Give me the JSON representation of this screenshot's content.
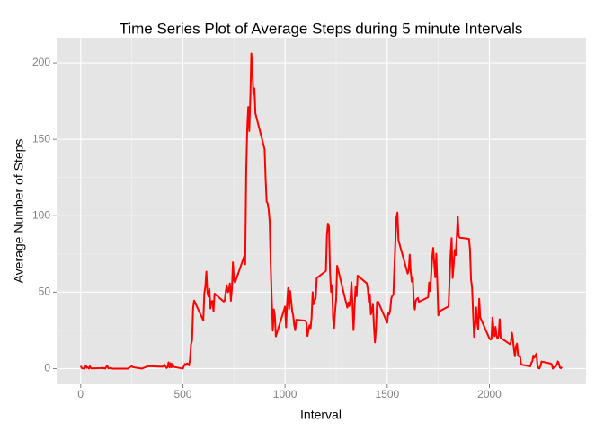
{
  "chart_data": {
    "type": "line",
    "title": "Time Series Plot of Average Steps during 5 minute Intervals",
    "x_label": "Interval",
    "y_label": "Average Number of Steps",
    "xlim": [
      -117.75,
      2472.75
    ],
    "ylim": [
      -10.31,
      216.48
    ],
    "xticks": [
      0,
      500,
      1000,
      1500,
      2000
    ],
    "yticks": [
      0,
      50,
      100,
      150,
      200
    ],
    "grid": true,
    "series": [
      {
        "color": "#ff0000",
        "x": [
          0,
          5,
          10,
          15,
          20,
          25,
          30,
          35,
          40,
          45,
          50,
          55,
          100,
          105,
          110,
          115,
          120,
          125,
          130,
          135,
          140,
          145,
          150,
          155,
          200,
          230,
          250,
          255,
          300,
          330,
          400,
          410,
          420,
          425,
          430,
          435,
          440,
          445,
          450,
          455,
          500,
          505,
          510,
          515,
          520,
          525,
          530,
          535,
          540,
          545,
          550,
          555,
          600,
          605,
          610,
          615,
          620,
          625,
          630,
          635,
          640,
          645,
          650,
          655,
          700,
          705,
          710,
          715,
          720,
          725,
          730,
          735,
          740,
          745,
          750,
          755,
          800,
          805,
          810,
          815,
          820,
          825,
          830,
          835,
          840,
          845,
          850,
          855,
          900,
          905,
          910,
          915,
          920,
          925,
          930,
          935,
          940,
          945,
          950,
          955,
          1000,
          1005,
          1010,
          1015,
          1020,
          1025,
          1030,
          1035,
          1040,
          1045,
          1050,
          1055,
          1100,
          1105,
          1110,
          1115,
          1120,
          1125,
          1130,
          1135,
          1140,
          1145,
          1150,
          1155,
          1200,
          1205,
          1210,
          1215,
          1220,
          1225,
          1230,
          1235,
          1240,
          1245,
          1250,
          1255,
          1300,
          1305,
          1310,
          1315,
          1320,
          1325,
          1330,
          1335,
          1340,
          1345,
          1350,
          1355,
          1400,
          1405,
          1410,
          1415,
          1420,
          1425,
          1430,
          1435,
          1440,
          1445,
          1450,
          1455,
          1500,
          1505,
          1510,
          1515,
          1520,
          1525,
          1530,
          1535,
          1540,
          1545,
          1550,
          1555,
          1600,
          1605,
          1610,
          1615,
          1620,
          1625,
          1630,
          1635,
          1640,
          1645,
          1650,
          1655,
          1700,
          1705,
          1710,
          1715,
          1720,
          1725,
          1730,
          1735,
          1740,
          1745,
          1750,
          1755,
          1800,
          1805,
          1810,
          1815,
          1820,
          1825,
          1830,
          1835,
          1840,
          1845,
          1850,
          1855,
          1900,
          1905,
          1910,
          1915,
          1920,
          1925,
          1930,
          1935,
          1940,
          1945,
          1950,
          1955,
          2000,
          2005,
          2010,
          2015,
          2020,
          2025,
          2030,
          2035,
          2040,
          2045,
          2050,
          2055,
          2100,
          2105,
          2110,
          2115,
          2120,
          2125,
          2130,
          2135,
          2140,
          2145,
          2150,
          2155,
          2200,
          2205,
          2210,
          2215,
          2220,
          2225,
          2230,
          2235,
          2240,
          2245,
          2250,
          2255,
          2300,
          2305,
          2310,
          2315,
          2320,
          2325,
          2330,
          2335,
          2340,
          2345,
          2350,
          2355
        ],
        "values": [
          1.72,
          0.34,
          0.13,
          0.15,
          0.08,
          2.09,
          0.53,
          0.87,
          0,
          1.47,
          0.3,
          0.13,
          0.32,
          0.68,
          0.15,
          0.34,
          0,
          1.11,
          1.83,
          0.17,
          0.17,
          0.38,
          0.26,
          0,
          0,
          0,
          1.55,
          0.94,
          0,
          1.62,
          1.19,
          2.57,
          0.34,
          0.94,
          4.11,
          0.66,
          3.49,
          0.83,
          3.11,
          1.11,
          0,
          1.57,
          3,
          2.25,
          3.32,
          2.96,
          2.09,
          6.06,
          16.02,
          18.34,
          39.45,
          44.49,
          31.49,
          49.26,
          53.77,
          63.45,
          49.96,
          47.08,
          52.15,
          39.34,
          44.02,
          44.17,
          37.36,
          49.04,
          43.81,
          44.38,
          50.51,
          54.51,
          49.92,
          50.98,
          55.68,
          44.32,
          52.26,
          69.55,
          57.85,
          56.15,
          73.38,
          68.21,
          129.43,
          157.53,
          171.15,
          155.4,
          177.3,
          206.17,
          195.92,
          179.57,
          183.4,
          167.02,
          143.45,
          124.04,
          109.11,
          108.11,
          103.72,
          95.96,
          66.21,
          45.23,
          24.79,
          38.75,
          34.98,
          21.06,
          40.57,
          26.98,
          42.42,
          52.66,
          38.92,
          50.79,
          44.28,
          37.42,
          34.7,
          28.34,
          25.09,
          31.94,
          31.36,
          29.68,
          21.32,
          25.55,
          28.38,
          26.47,
          33.43,
          49.98,
          42.04,
          44.6,
          46.04,
          59.19,
          63.87,
          87.7,
          94.85,
          92.77,
          63.4,
          50.17,
          54.47,
          32.42,
          26.53,
          37.74,
          45.06,
          67.28,
          42.34,
          39.89,
          43.26,
          40.98,
          46.25,
          56.43,
          42.75,
          25.13,
          39.96,
          53.55,
          47.32,
          60.81,
          55.75,
          51.96,
          43.58,
          48.7,
          35.47,
          37.55,
          41.85,
          27.51,
          17.11,
          26.08,
          43.62,
          43.77,
          30.02,
          36.08,
          35.49,
          38.85,
          45.96,
          47.75,
          48.13,
          65.32,
          82.91,
          98.66,
          102.11,
          83.96,
          62.13,
          64.13,
          74.55,
          63.17,
          56.91,
          59.77,
          43.87,
          38.57,
          44.66,
          45.45,
          46.21,
          43.68,
          46.62,
          56.3,
          50.72,
          61.23,
          72.72,
          78.94,
          68.94,
          59.66,
          75.09,
          56.51,
          34.77,
          37.45,
          40.68,
          58.02,
          74.7,
          85.32,
          59.26,
          67.77,
          77.7,
          74.25,
          85.34,
          99.45,
          86.58,
          85.6,
          84.87,
          77.83,
          58.04,
          53.36,
          36.32,
          20.72,
          27.4,
          40.02,
          30.21,
          25.55,
          45.66,
          33.53,
          19.62,
          19.02,
          19.34,
          33.34,
          26.81,
          21.17,
          27.3,
          21.34,
          19.55,
          21.32,
          32.3,
          20.15,
          15.94,
          17.23,
          23.45,
          19.25,
          12.45,
          8.02,
          14.66,
          16.3,
          8.68,
          7.79,
          8.13,
          2.62,
          1.45,
          3.68,
          4.81,
          8.51,
          7.08,
          8.7,
          9.75,
          2.21,
          0.32,
          0.11,
          1.6,
          4.6,
          3.3,
          2.85,
          0,
          0.83,
          0.96,
          1.58,
          2.6,
          4.7,
          3.3,
          0.64,
          0.23,
          1.08
        ]
      }
    ]
  }
}
